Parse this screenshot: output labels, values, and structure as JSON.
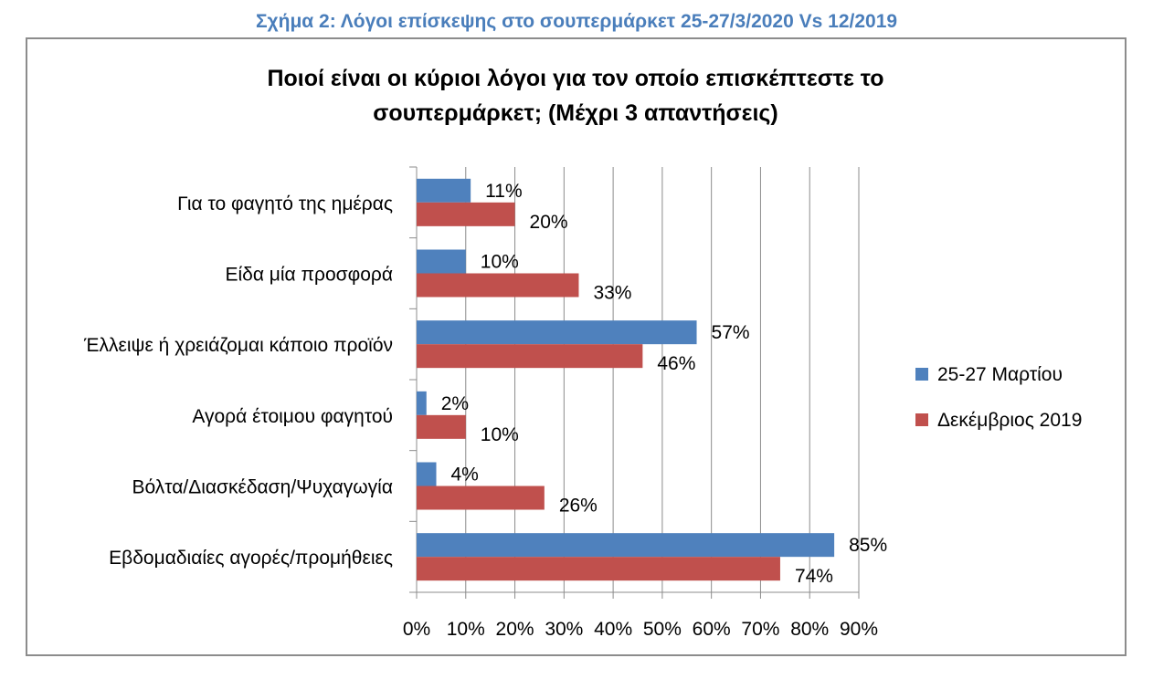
{
  "figure_caption": "Σχήμα 2: Λόγοι επίσκεψης στο σουπερμάρκετ 25-27/3/2020 Vs 12/2019",
  "colors": {
    "caption": "#4a7ebb",
    "series_1": "#4f81bd",
    "series_2": "#c0504d",
    "grid": "#8c8c8c",
    "frame": "#8c8c8c"
  },
  "chart_data": {
    "type": "bar",
    "orientation": "horizontal",
    "title_lines": [
      "Ποιοί είναι οι κύριοι λόγοι για τον οποίο επισκέπτεστε το",
      "σουπερμάρκετ; (Μέχρι 3 απαντήσεις)"
    ],
    "categories": [
      "Για το φαγητό της ημέρας",
      "Είδα μία προσφορά",
      "Έλλειψε ή χρειάζομαι κάποιο προϊόν",
      "Αγορά έτοιμου φαγητού",
      "Βόλτα/Διασκέδαση/Ψυχαγωγία",
      "Εβδομαδιαίες αγορές/προμήθειες"
    ],
    "series": [
      {
        "name": "25-27 Μαρτίου",
        "values": [
          11,
          10,
          57,
          2,
          4,
          85
        ],
        "labels": [
          "11%",
          "10%",
          "57%",
          "2%",
          "4%",
          "85%"
        ]
      },
      {
        "name": "Δεκέμβριος 2019",
        "values": [
          20,
          33,
          46,
          10,
          26,
          74
        ],
        "labels": [
          "20%",
          "33%",
          "46%",
          "10%",
          "26%",
          "74%"
        ]
      }
    ],
    "xlim": [
      0,
      90
    ],
    "xticks": [
      0,
      10,
      20,
      30,
      40,
      50,
      60,
      70,
      80,
      90
    ],
    "xtick_labels": [
      "0%",
      "10%",
      "20%",
      "30%",
      "40%",
      "50%",
      "60%",
      "70%",
      "80%",
      "90%"
    ],
    "grid": true,
    "legend_position": "right"
  }
}
